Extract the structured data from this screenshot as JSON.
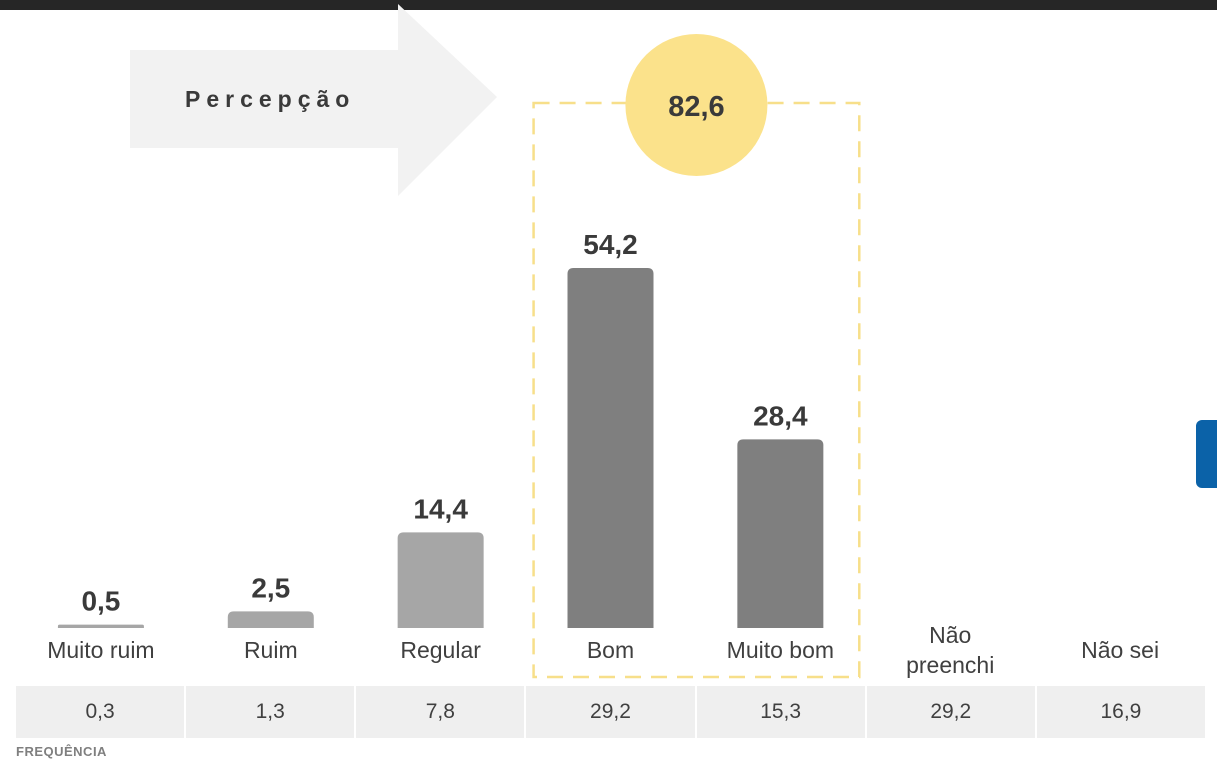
{
  "chart_data": {
    "type": "bar",
    "categories": [
      "Muito ruim",
      "Ruim",
      "Regular",
      "Bom",
      "Muito bom",
      "Não|preenchi",
      "Não sei"
    ],
    "series": [
      {
        "values": [
          0.5,
          2.5,
          14.4,
          54.2,
          28.4,
          null,
          null
        ],
        "labels": [
          "0,5",
          "2,5",
          "14,4",
          "54,2",
          "28,4",
          "",
          ""
        ]
      }
    ],
    "ylim": [
      0,
      60
    ],
    "highlight": {
      "categories": [
        "Bom",
        "Muito bom"
      ],
      "total_label": "82,6",
      "colors": {
        "box": "#f7df8a",
        "circle": "#fbe28b"
      }
    },
    "colors": {
      "light_bar": "#a6a6a6",
      "dark_bar": "#7f7f7f"
    },
    "grid": false
  },
  "arrow_label": "Percepção",
  "frequency": {
    "title": "FREQUÊNCIA",
    "values": [
      "0,3",
      "1,3",
      "7,8",
      "29,2",
      "15,3",
      "29,2",
      "16,9"
    ]
  }
}
